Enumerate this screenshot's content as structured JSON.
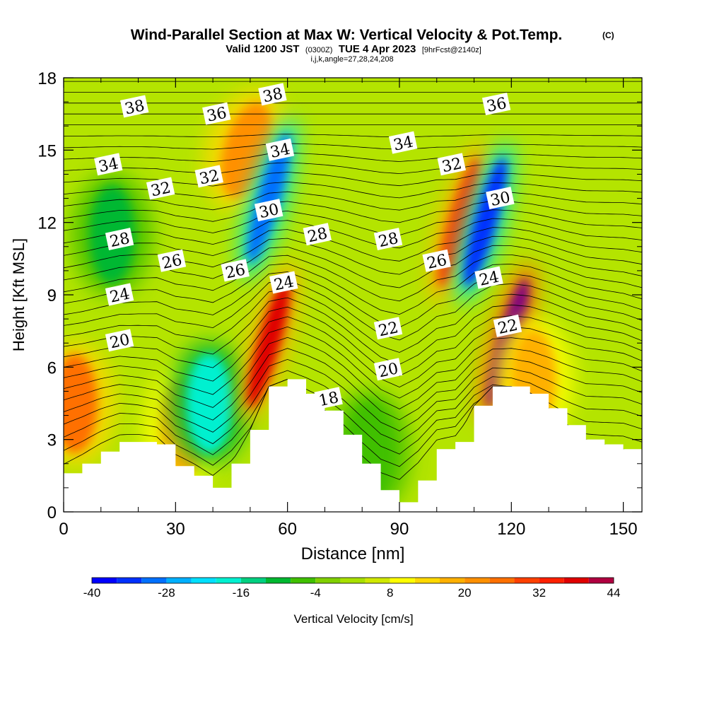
{
  "header": {
    "title": "Wind-Parallel Section at Max W: Vertical Velocity & Pot.Temp.",
    "copyright": "(C)",
    "valid_prefix": "Valid 1200 JST",
    "valid_utc": "(0300Z)",
    "valid_date": "TUE 4 Apr 2023",
    "forecast": "[9hrFcst@2140z]",
    "indices": "i,j,k,angle=27,28,24,208"
  },
  "chart_data": {
    "type": "heatmap",
    "title": "Wind-Parallel Section at Max W: Vertical Velocity & Pot.Temp.",
    "xlabel": "Distance [nm]",
    "ylabel": "Height [Kft MSL]",
    "xlim": [
      0,
      155
    ],
    "ylim": [
      0,
      18
    ],
    "xticks": [
      0,
      30,
      60,
      90,
      120,
      150
    ],
    "yticks": [
      0,
      3,
      6,
      9,
      12,
      15,
      18
    ],
    "terrain": {
      "x": [
        0,
        5,
        10,
        15,
        20,
        25,
        30,
        35,
        40,
        45,
        50,
        55,
        60,
        65,
        70,
        75,
        80,
        85,
        90,
        95,
        100,
        105,
        110,
        115,
        120,
        125,
        130,
        135,
        140,
        145,
        150,
        155
      ],
      "height": [
        1.6,
        2.0,
        2.5,
        2.9,
        2.9,
        2.8,
        1.9,
        1.5,
        1.0,
        2.0,
        3.4,
        5.2,
        5.5,
        4.9,
        4.2,
        3.2,
        2.0,
        0.9,
        0.4,
        1.3,
        2.6,
        2.9,
        4.4,
        5.2,
        5.2,
        4.9,
        4.3,
        3.6,
        3.0,
        2.8,
        2.6,
        2.1
      ]
    },
    "vertical_velocity": {
      "units": "cm/s",
      "colorbar": {
        "label": "Vertical Velocity [cm/s]",
        "tick_labels": [
          "-40",
          "-28",
          "-16",
          "-4",
          "8",
          "20",
          "32",
          "44"
        ],
        "levels": [
          -40,
          -36,
          -32,
          -28,
          -24,
          -20,
          -16,
          -12,
          -8,
          -4,
          0,
          4,
          8,
          12,
          16,
          20,
          24,
          28,
          32,
          36,
          40,
          44
        ],
        "colors": [
          "#0000ff",
          "#0030ff",
          "#0070ff",
          "#00b0ff",
          "#00e0ff",
          "#00f0d0",
          "#00d080",
          "#00b830",
          "#40c000",
          "#80d000",
          "#a8e000",
          "#d0e800",
          "#ffff00",
          "#ffd800",
          "#ffb000",
          "#ff9000",
          "#ff7000",
          "#ff4000",
          "#ff2000",
          "#e00000",
          "#b00040",
          "#800080"
        ]
      },
      "features": [
        {
          "x": 3,
          "y": 4.5,
          "w_cms": 26
        },
        {
          "x": 32,
          "y": 3.5,
          "w_cms": 18
        },
        {
          "x": 39,
          "y": 4.5,
          "w_cms": -18
        },
        {
          "x": 13,
          "y": 11.5,
          "w_cms": -10
        },
        {
          "x": 49,
          "y": 15,
          "w_cms": 22
        },
        {
          "x": 55,
          "y": 13,
          "w_cms": -30
        },
        {
          "x": 55,
          "y": 7,
          "w_cms": 36
        },
        {
          "x": 106,
          "y": 12,
          "w_cms": 30
        },
        {
          "x": 113,
          "y": 12,
          "w_cms": -34
        },
        {
          "x": 119,
          "y": 7,
          "w_cms": 44
        },
        {
          "x": 82,
          "y": 2.5,
          "w_cms": -8
        },
        {
          "x": 126,
          "y": 5.5,
          "w_cms": 16
        }
      ]
    },
    "potential_temperature": {
      "interval": 1,
      "labeled_levels": [
        "18",
        "20",
        "22",
        "24",
        "26",
        "28",
        "30",
        "32",
        "34",
        "36",
        "38"
      ],
      "labels": [
        {
          "text": "38",
          "x": 19,
          "y": 16.8
        },
        {
          "text": "36",
          "x": 41,
          "y": 16.5
        },
        {
          "text": "38",
          "x": 56,
          "y": 17.3
        },
        {
          "text": "36",
          "x": 116,
          "y": 16.9
        },
        {
          "text": "34",
          "x": 12,
          "y": 14.4
        },
        {
          "text": "34",
          "x": 58,
          "y": 15.0
        },
        {
          "text": "34",
          "x": 91,
          "y": 15.3
        },
        {
          "text": "32",
          "x": 26,
          "y": 13.4
        },
        {
          "text": "32",
          "x": 39,
          "y": 13.9
        },
        {
          "text": "32",
          "x": 104,
          "y": 14.4
        },
        {
          "text": "30",
          "x": 55,
          "y": 12.5
        },
        {
          "text": "30",
          "x": 117,
          "y": 13.0
        },
        {
          "text": "28",
          "x": 15,
          "y": 11.3
        },
        {
          "text": "28",
          "x": 68,
          "y": 11.5
        },
        {
          "text": "28",
          "x": 87,
          "y": 11.3
        },
        {
          "text": "26",
          "x": 29,
          "y": 10.4
        },
        {
          "text": "26",
          "x": 46,
          "y": 10.0
        },
        {
          "text": "26",
          "x": 100,
          "y": 10.4
        },
        {
          "text": "24",
          "x": 15,
          "y": 9.0
        },
        {
          "text": "24",
          "x": 59,
          "y": 9.5
        },
        {
          "text": "24",
          "x": 114,
          "y": 9.7
        },
        {
          "text": "22",
          "x": 87,
          "y": 7.6
        },
        {
          "text": "22",
          "x": 119,
          "y": 7.7
        },
        {
          "text": "20",
          "x": 15,
          "y": 7.1
        },
        {
          "text": "20",
          "x": 87,
          "y": 5.9
        },
        {
          "text": "18",
          "x": 71,
          "y": 4.7
        }
      ]
    }
  }
}
